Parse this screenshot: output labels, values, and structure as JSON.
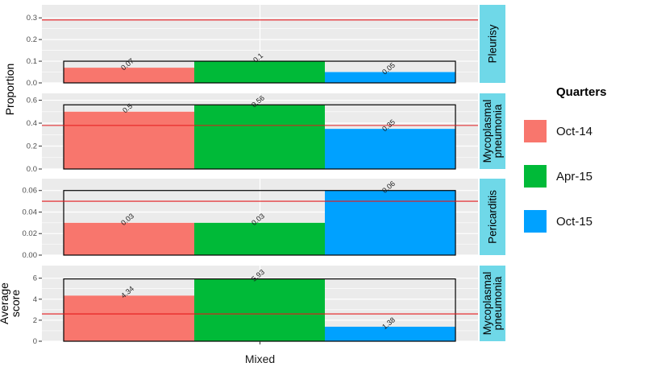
{
  "chart_data": {
    "type": "bar",
    "x_category": "Mixed",
    "legend": {
      "title": "Quarters",
      "position": "right",
      "entries": [
        {
          "label": "Oct-14",
          "color": "#F8766D"
        },
        {
          "label": "Apr-15",
          "color": "#00BA38"
        },
        {
          "label": "Oct-15",
          "color": "#00A1FF"
        }
      ]
    },
    "panels": [
      {
        "strip_lines": [
          "Pleurisy"
        ],
        "ylim": [
          0,
          0.36
        ],
        "yticks": [
          0,
          0.1,
          0.2,
          0.3
        ],
        "tick_labels": [
          "0.0",
          "0.1",
          "0.2",
          "0.3"
        ],
        "reference_line": 0.29,
        "values": [
          0.07,
          0.1,
          0.05
        ],
        "labels": [
          "0.07",
          "0.1",
          "0.05"
        ]
      },
      {
        "strip_lines": [
          "Mycoplasmal",
          "pneumonia"
        ],
        "ylim": [
          0,
          0.66
        ],
        "yticks": [
          0,
          0.2,
          0.4,
          0.6
        ],
        "tick_labels": [
          "0.0",
          "0.2",
          "0.4",
          "0.6"
        ],
        "reference_line": 0.38,
        "values": [
          0.5,
          0.56,
          0.35
        ],
        "labels": [
          "0.5",
          "0.56",
          "0.35"
        ]
      },
      {
        "strip_lines": [
          "Pericarditis"
        ],
        "ylim": [
          0,
          0.071
        ],
        "yticks": [
          0,
          0.02,
          0.04,
          0.06
        ],
        "tick_labels": [
          "0.00",
          "0.02",
          "0.04",
          "0.06"
        ],
        "reference_line": 0.05,
        "values": [
          0.03,
          0.03,
          0.06
        ],
        "labels": [
          "0.03",
          "0.03",
          "0.06"
        ]
      },
      {
        "strip_lines": [
          "Mycoplasmal",
          "pneumonia"
        ],
        "ylim": [
          0,
          7.2
        ],
        "yticks": [
          0,
          2,
          4,
          6
        ],
        "tick_labels": [
          "0",
          "2",
          "4",
          "6"
        ],
        "reference_line": 2.6,
        "values": [
          4.34,
          5.93,
          1.38
        ],
        "labels": [
          "4.34",
          "5.93",
          "1.38"
        ]
      }
    ],
    "ylabels": {
      "top": [
        "Proportion"
      ],
      "bottom": [
        "Average",
        "score"
      ]
    },
    "colors": {
      "panel_background": "#EBEBEB",
      "gridline": "#FFFFFF",
      "strip": "#6FD8E8",
      "reference_line": "#E41A1C",
      "frame": "#000000"
    }
  }
}
